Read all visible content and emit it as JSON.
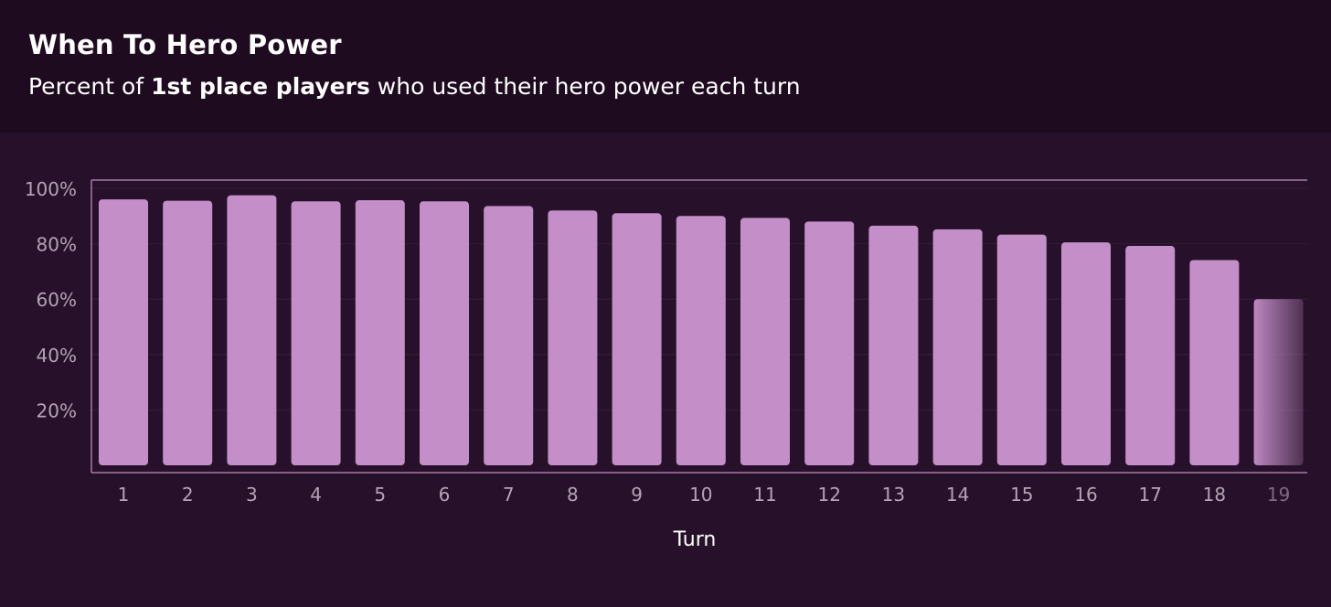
{
  "header": {
    "title": "When To Hero Power",
    "subtitle_pre": "Percent of ",
    "subtitle_bold": "1st place players",
    "subtitle_post": " who used their hero power each turn"
  },
  "colors": {
    "header_bg": "#1e0b1f",
    "chart_bg": "#27112a",
    "bar": "#c48ec9",
    "axis": "#a77aa9",
    "tick_text": "#b4a3b6",
    "grid": "#361d39"
  },
  "chart_data": {
    "type": "bar",
    "title": "When To Hero Power",
    "subtitle": "Percent of 1st place players who used their hero power each turn",
    "xlabel": "Turn",
    "ylabel": "",
    "categories": [
      "1",
      "2",
      "3",
      "4",
      "5",
      "6",
      "7",
      "8",
      "9",
      "10",
      "11",
      "12",
      "13",
      "14",
      "15",
      "16",
      "17",
      "18",
      "19"
    ],
    "values": [
      96,
      95.5,
      97.5,
      95.3,
      95.7,
      95.3,
      93.6,
      92,
      91,
      90,
      89.3,
      88,
      86.5,
      85.2,
      83.3,
      80.5,
      79.2,
      74.1,
      60
    ],
    "ylim": [
      0,
      100
    ],
    "yticks": [
      20,
      40,
      60,
      80,
      100
    ],
    "ytick_labels": [
      "20%",
      "40%",
      "60%",
      "80%",
      "100%"
    ],
    "grid": true,
    "last_bar_faded": true
  }
}
